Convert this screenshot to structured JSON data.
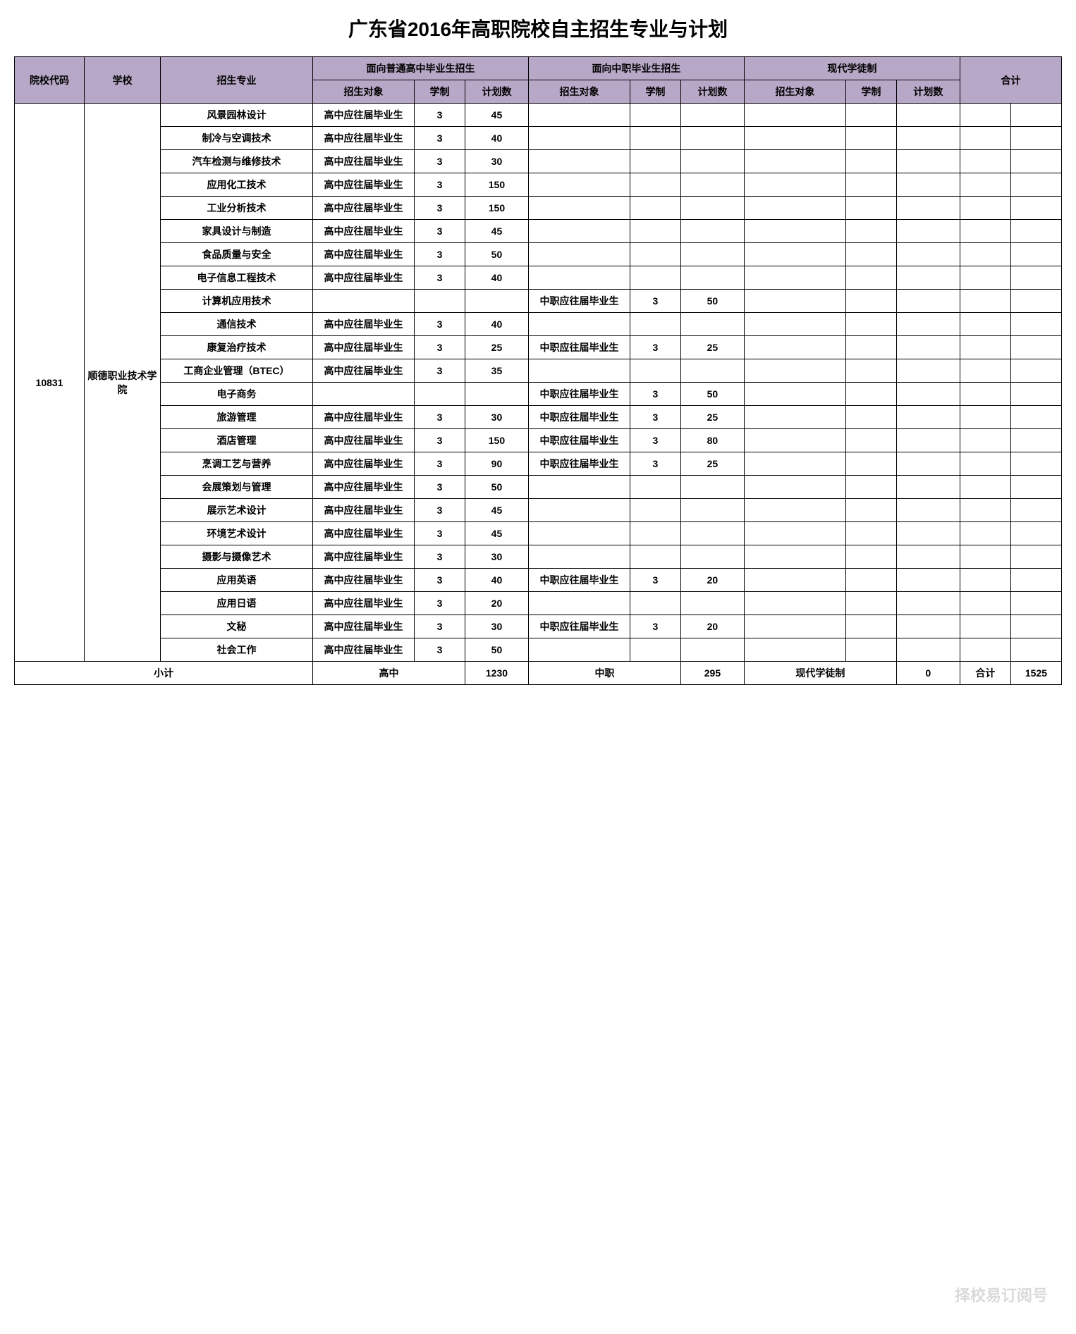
{
  "title": "广东省2016年高职院校自主招生专业与计划",
  "colors": {
    "header_bg": "#b8a8c8",
    "border": "#000000",
    "background": "#ffffff",
    "text": "#000000"
  },
  "header": {
    "code": "院校代码",
    "school": "学校",
    "major": "招生专业",
    "group_hs": "面向普通高中毕业生招生",
    "group_voc": "面向中职毕业生招生",
    "group_apprentice": "现代学徒制",
    "total": "合计",
    "sub_target": "招生对象",
    "sub_duration": "学制",
    "sub_plan": "计划数"
  },
  "school_code": "10831",
  "school_name": "顺德职业技术学院",
  "hs_target_text": "高中应往届毕业生",
  "voc_target_text": "中职应往届毕业生",
  "rows": [
    {
      "major": "风景园林设计",
      "hs_target": true,
      "hs_dur": "3",
      "hs_plan": "45",
      "voc_target": false,
      "voc_dur": "",
      "voc_plan": ""
    },
    {
      "major": "制冷与空调技术",
      "hs_target": true,
      "hs_dur": "3",
      "hs_plan": "40",
      "voc_target": false,
      "voc_dur": "",
      "voc_plan": ""
    },
    {
      "major": "汽车检测与维修技术",
      "hs_target": true,
      "hs_dur": "3",
      "hs_plan": "30",
      "voc_target": false,
      "voc_dur": "",
      "voc_plan": ""
    },
    {
      "major": "应用化工技术",
      "hs_target": true,
      "hs_dur": "3",
      "hs_plan": "150",
      "voc_target": false,
      "voc_dur": "",
      "voc_plan": ""
    },
    {
      "major": "工业分析技术",
      "hs_target": true,
      "hs_dur": "3",
      "hs_plan": "150",
      "voc_target": false,
      "voc_dur": "",
      "voc_plan": ""
    },
    {
      "major": "家具设计与制造",
      "hs_target": true,
      "hs_dur": "3",
      "hs_plan": "45",
      "voc_target": false,
      "voc_dur": "",
      "voc_plan": ""
    },
    {
      "major": "食品质量与安全",
      "hs_target": true,
      "hs_dur": "3",
      "hs_plan": "50",
      "voc_target": false,
      "voc_dur": "",
      "voc_plan": ""
    },
    {
      "major": "电子信息工程技术",
      "hs_target": true,
      "hs_dur": "3",
      "hs_plan": "40",
      "voc_target": false,
      "voc_dur": "",
      "voc_plan": ""
    },
    {
      "major": "计算机应用技术",
      "hs_target": false,
      "hs_dur": "",
      "hs_plan": "",
      "voc_target": true,
      "voc_dur": "3",
      "voc_plan": "50"
    },
    {
      "major": "通信技术",
      "hs_target": true,
      "hs_dur": "3",
      "hs_plan": "40",
      "voc_target": false,
      "voc_dur": "",
      "voc_plan": ""
    },
    {
      "major": "康复治疗技术",
      "hs_target": true,
      "hs_dur": "3",
      "hs_plan": "25",
      "voc_target": true,
      "voc_dur": "3",
      "voc_plan": "25"
    },
    {
      "major": "工商企业管理（BTEC）",
      "hs_target": true,
      "hs_dur": "3",
      "hs_plan": "35",
      "voc_target": false,
      "voc_dur": "",
      "voc_plan": ""
    },
    {
      "major": "电子商务",
      "hs_target": false,
      "hs_dur": "",
      "hs_plan": "",
      "voc_target": true,
      "voc_dur": "3",
      "voc_plan": "50"
    },
    {
      "major": "旅游管理",
      "hs_target": true,
      "hs_dur": "3",
      "hs_plan": "30",
      "voc_target": true,
      "voc_dur": "3",
      "voc_plan": "25"
    },
    {
      "major": "酒店管理",
      "hs_target": true,
      "hs_dur": "3",
      "hs_plan": "150",
      "voc_target": true,
      "voc_dur": "3",
      "voc_plan": "80"
    },
    {
      "major": "烹调工艺与营养",
      "hs_target": true,
      "hs_dur": "3",
      "hs_plan": "90",
      "voc_target": true,
      "voc_dur": "3",
      "voc_plan": "25"
    },
    {
      "major": "会展策划与管理",
      "hs_target": true,
      "hs_dur": "3",
      "hs_plan": "50",
      "voc_target": false,
      "voc_dur": "",
      "voc_plan": ""
    },
    {
      "major": "展示艺术设计",
      "hs_target": true,
      "hs_dur": "3",
      "hs_plan": "45",
      "voc_target": false,
      "voc_dur": "",
      "voc_plan": ""
    },
    {
      "major": "环境艺术设计",
      "hs_target": true,
      "hs_dur": "3",
      "hs_plan": "45",
      "voc_target": false,
      "voc_dur": "",
      "voc_plan": ""
    },
    {
      "major": "摄影与摄像艺术",
      "hs_target": true,
      "hs_dur": "3",
      "hs_plan": "30",
      "voc_target": false,
      "voc_dur": "",
      "voc_plan": ""
    },
    {
      "major": "应用英语",
      "hs_target": true,
      "hs_dur": "3",
      "hs_plan": "40",
      "voc_target": true,
      "voc_dur": "3",
      "voc_plan": "20"
    },
    {
      "major": "应用日语",
      "hs_target": true,
      "hs_dur": "3",
      "hs_plan": "20",
      "voc_target": false,
      "voc_dur": "",
      "voc_plan": ""
    },
    {
      "major": "文秘",
      "hs_target": true,
      "hs_dur": "3",
      "hs_plan": "30",
      "voc_target": true,
      "voc_dur": "3",
      "voc_plan": "20"
    },
    {
      "major": "社会工作",
      "hs_target": true,
      "hs_dur": "3",
      "hs_plan": "50",
      "voc_target": false,
      "voc_dur": "",
      "voc_plan": ""
    }
  ],
  "footer": {
    "subtotal_label": "小计",
    "hs_label": "高中",
    "hs_total": "1230",
    "voc_label": "中职",
    "voc_total": "295",
    "apprentice_label": "现代学徒制",
    "apprentice_total": "0",
    "total_label": "合计",
    "grand_total": "1525"
  },
  "watermark": "择校易订阅号"
}
